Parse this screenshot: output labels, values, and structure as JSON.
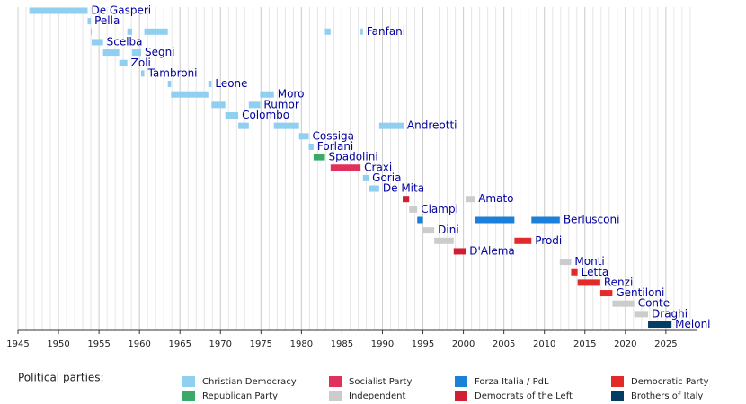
{
  "chart_data": {
    "type": "timeline",
    "xlim": [
      1945,
      2028.9
    ],
    "xticks": [
      1945,
      1950,
      1955,
      1960,
      1965,
      1970,
      1975,
      1980,
      1985,
      1990,
      1995,
      2000,
      2005,
      2010,
      2015,
      2020,
      2025
    ],
    "grid": true,
    "rows": [
      {
        "name": "De Gasperi",
        "bars": [
          {
            "start": 1946.4,
            "end": 1953.6,
            "color": "#8fcff0"
          }
        ]
      },
      {
        "name": "Pella",
        "bars": [
          {
            "start": 1953.6,
            "end": 1954.0,
            "color": "#8fcff0"
          }
        ]
      },
      {
        "name": "Fanfani",
        "bars": [
          {
            "start": 1954.0,
            "end": 1954.1,
            "color": "#8fcff0"
          },
          {
            "start": 1958.5,
            "end": 1959.1,
            "color": "#8fcff0"
          },
          {
            "start": 1960.6,
            "end": 1963.5,
            "color": "#8fcff0"
          },
          {
            "start": 1982.9,
            "end": 1983.6,
            "color": "#8fcff0"
          },
          {
            "start": 1987.3,
            "end": 1987.6,
            "color": "#8fcff0"
          }
        ]
      },
      {
        "name": "Scelba",
        "bars": [
          {
            "start": 1954.1,
            "end": 1955.5,
            "color": "#8fcff0"
          }
        ]
      },
      {
        "name": "Segni",
        "bars": [
          {
            "start": 1955.5,
            "end": 1957.5,
            "color": "#8fcff0"
          },
          {
            "start": 1959.1,
            "end": 1960.2,
            "color": "#8fcff0"
          }
        ]
      },
      {
        "name": "Zoli",
        "bars": [
          {
            "start": 1957.5,
            "end": 1958.5,
            "color": "#8fcff0"
          }
        ]
      },
      {
        "name": "Tambroni",
        "bars": [
          {
            "start": 1960.2,
            "end": 1960.6,
            "color": "#8fcff0"
          }
        ]
      },
      {
        "name": "Leone",
        "bars": [
          {
            "start": 1963.5,
            "end": 1963.9,
            "color": "#8fcff0"
          },
          {
            "start": 1968.5,
            "end": 1968.9,
            "color": "#8fcff0"
          }
        ]
      },
      {
        "name": "Moro",
        "bars": [
          {
            "start": 1963.9,
            "end": 1968.5,
            "color": "#8fcff0"
          },
          {
            "start": 1974.9,
            "end": 1976.6,
            "color": "#8fcff0"
          }
        ]
      },
      {
        "name": "Rumor",
        "bars": [
          {
            "start": 1968.9,
            "end": 1970.6,
            "color": "#8fcff0"
          },
          {
            "start": 1973.5,
            "end": 1974.9,
            "color": "#8fcff0"
          }
        ]
      },
      {
        "name": "Colombo",
        "bars": [
          {
            "start": 1970.6,
            "end": 1972.2,
            "color": "#8fcff0"
          }
        ]
      },
      {
        "name": "Andreotti",
        "bars": [
          {
            "start": 1972.2,
            "end": 1973.5,
            "color": "#8fcff0"
          },
          {
            "start": 1976.6,
            "end": 1979.7,
            "color": "#8fcff0"
          },
          {
            "start": 1989.6,
            "end": 1992.6,
            "color": "#8fcff0"
          }
        ]
      },
      {
        "name": "Cossiga",
        "bars": [
          {
            "start": 1979.7,
            "end": 1980.9,
            "color": "#8fcff0"
          }
        ]
      },
      {
        "name": "Forlani",
        "bars": [
          {
            "start": 1980.9,
            "end": 1981.5,
            "color": "#8fcff0"
          }
        ]
      },
      {
        "name": "Spadolini",
        "bars": [
          {
            "start": 1981.5,
            "end": 1982.9,
            "color": "#3aaa6a"
          }
        ]
      },
      {
        "name": "Craxi",
        "bars": [
          {
            "start": 1983.6,
            "end": 1987.3,
            "color": "#e0315c"
          }
        ]
      },
      {
        "name": "Goria",
        "bars": [
          {
            "start": 1987.6,
            "end": 1988.3,
            "color": "#8fcff0"
          }
        ]
      },
      {
        "name": "De Mita",
        "bars": [
          {
            "start": 1988.3,
            "end": 1989.6,
            "color": "#8fcff0"
          }
        ]
      },
      {
        "name": "Amato",
        "bars": [
          {
            "start": 1992.5,
            "end": 1993.3,
            "color": "#d21e32"
          },
          {
            "start": 2000.3,
            "end": 2001.4,
            "color": "#cccccc"
          }
        ]
      },
      {
        "name": "Ciampi",
        "bars": [
          {
            "start": 1993.3,
            "end": 1994.3,
            "color": "#cccccc"
          }
        ]
      },
      {
        "name": "Berlusconi",
        "bars": [
          {
            "start": 1994.3,
            "end": 1995.0,
            "color": "#1a80d8"
          },
          {
            "start": 2001.4,
            "end": 2006.3,
            "color": "#1a80d8"
          },
          {
            "start": 2008.4,
            "end": 2011.9,
            "color": "#1a80d8"
          }
        ]
      },
      {
        "name": "Dini",
        "bars": [
          {
            "start": 1995.0,
            "end": 1996.4,
            "color": "#cccccc"
          }
        ]
      },
      {
        "name": "Prodi",
        "bars": [
          {
            "start": 1996.4,
            "end": 1998.8,
            "color": "#cccccc"
          },
          {
            "start": 2006.3,
            "end": 2008.4,
            "color": "#e32a2a"
          }
        ]
      },
      {
        "name": "D'Alema",
        "bars": [
          {
            "start": 1998.8,
            "end": 2000.3,
            "color": "#d21e32"
          }
        ]
      },
      {
        "name": "Monti",
        "bars": [
          {
            "start": 2011.9,
            "end": 2013.3,
            "color": "#cccccc"
          }
        ]
      },
      {
        "name": "Letta",
        "bars": [
          {
            "start": 2013.3,
            "end": 2014.1,
            "color": "#e32a2a"
          }
        ]
      },
      {
        "name": "Renzi",
        "bars": [
          {
            "start": 2014.1,
            "end": 2016.9,
            "color": "#e32a2a"
          }
        ]
      },
      {
        "name": "Gentiloni",
        "bars": [
          {
            "start": 2016.9,
            "end": 2018.4,
            "color": "#e32a2a"
          }
        ]
      },
      {
        "name": "Conte",
        "bars": [
          {
            "start": 2018.4,
            "end": 2021.1,
            "color": "#cccccc"
          }
        ]
      },
      {
        "name": "Draghi",
        "bars": [
          {
            "start": 2021.1,
            "end": 2022.8,
            "color": "#cccccc"
          }
        ]
      },
      {
        "name": "Meloni",
        "bars": [
          {
            "start": 2022.8,
            "end": 2025.7,
            "color": "#033d66"
          }
        ]
      }
    ],
    "legend_title": "Political parties:",
    "legend": [
      {
        "name": "Christian Democracy",
        "color": "#8fcff0"
      },
      {
        "name": "Republican Party",
        "color": "#3aaa6a"
      },
      {
        "name": "Socialist Party",
        "color": "#e0315c"
      },
      {
        "name": "Independent",
        "color": "#cccccc"
      },
      {
        "name": "Forza Italia / PdL",
        "color": "#1a80d8"
      },
      {
        "name": "Democrats of the Left",
        "color": "#d21e32"
      },
      {
        "name": "Democratic Party",
        "color": "#e32a2a"
      },
      {
        "name": "Brothers of Italy",
        "color": "#033d66"
      }
    ]
  }
}
